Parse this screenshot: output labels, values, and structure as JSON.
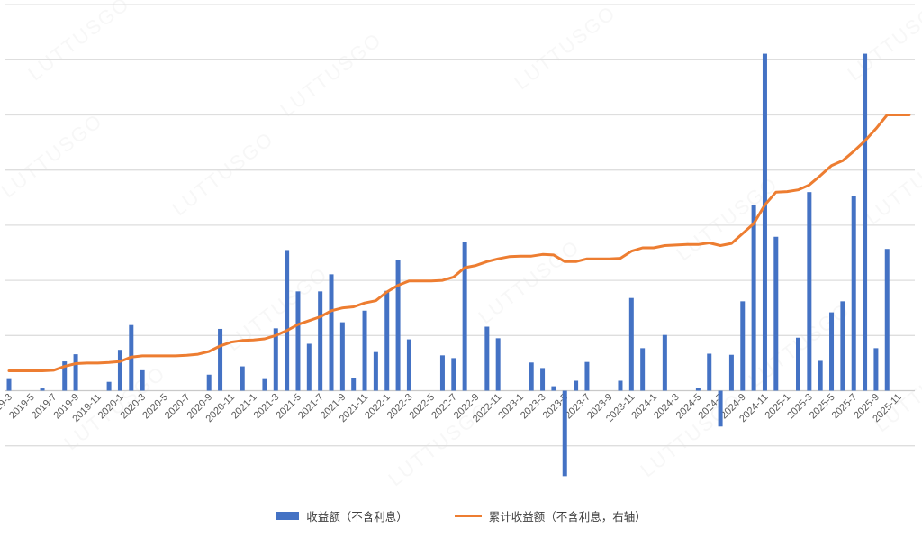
{
  "watermark": {
    "text": "LUTTUSGO"
  },
  "colors": {
    "bar": "#4472C4",
    "line": "#ED7D31",
    "gridline": "#DEDEDE",
    "axis_line": "#C9C9C9",
    "tick_label": "#595959",
    "legend_text": "#404040",
    "background": "#FFFFFF"
  },
  "legend": [
    {
      "label": "收益额（不含利息）",
      "type": "bar",
      "color": "#4472C4"
    },
    {
      "label": "累计收益额（不含利息，右轴）",
      "type": "line",
      "color": "#ED7D31"
    }
  ],
  "chart_data": {
    "type": "bar",
    "subtype": "bar+line combo, dual axis",
    "title": "",
    "xlabel": "",
    "ylabel": "",
    "y_axis_labels_visible": false,
    "value_unit": "gridline-intervals (axes unlabeled in screenshot; 1.0 = one horizontal gridline spacing)",
    "ylim_left_units": [
      -1,
      7
    ],
    "x_tick_step": 2,
    "grid": true,
    "legend_position": "bottom-center",
    "categories": [
      "2019-3",
      "2019-4",
      "2019-5",
      "2019-6",
      "2019-7",
      "2019-8",
      "2019-9",
      "2019-10",
      "2019-11",
      "2019-12",
      "2020-1",
      "2020-2",
      "2020-3",
      "2020-4",
      "2020-5",
      "2020-6",
      "2020-7",
      "2020-8",
      "2020-9",
      "2020-10",
      "2020-11",
      "2020-12",
      "2021-1",
      "2021-2",
      "2021-3",
      "2021-4",
      "2021-5",
      "2021-6",
      "2021-7",
      "2021-8",
      "2021-9",
      "2021-10",
      "2021-11",
      "2021-12",
      "2022-1",
      "2022-2",
      "2022-3",
      "2022-4",
      "2022-5",
      "2022-6",
      "2022-7",
      "2022-8",
      "2022-9",
      "2022-10",
      "2022-11",
      "2022-12",
      "2023-1",
      "2023-2",
      "2023-3",
      "2023-4",
      "2023-5",
      "2023-6",
      "2023-7",
      "2023-8",
      "2023-9",
      "2023-10",
      "2023-11",
      "2023-12",
      "2024-1",
      "2024-2",
      "2024-3",
      "2024-4",
      "2024-5",
      "2024-6",
      "2024-7",
      "2024-8",
      "2024-9",
      "2024-10",
      "2024-11",
      "2024-12",
      "2025-1",
      "2025-2",
      "2025-3",
      "2025-4",
      "2025-5",
      "2025-6",
      "2025-7",
      "2025-8",
      "2025-9",
      "2025-10",
      "2025-11",
      "2025-12"
    ],
    "series": [
      {
        "name": "收益额（不含利息）",
        "type": "bar",
        "axis": "left",
        "values": [
          0.21,
          0,
          0,
          0.04,
          0,
          0.53,
          0.66,
          0,
          0,
          0.16,
          0.74,
          1.19,
          0.37,
          0,
          0,
          0,
          0,
          0,
          0.29,
          1.12,
          0,
          0.44,
          0,
          0.21,
          1.13,
          2.55,
          1.8,
          0.85,
          1.8,
          2.11,
          1.24,
          0.23,
          1.45,
          0.7,
          1.81,
          2.37,
          0.93,
          0,
          0,
          0.64,
          0.59,
          2.7,
          0,
          1.16,
          0.95,
          0,
          0,
          0.51,
          0.41,
          0.08,
          -1.55,
          0.18,
          0.52,
          0,
          0,
          0.18,
          1.68,
          0.77,
          0,
          1.01,
          0,
          0,
          0.05,
          0.67,
          -0.65,
          0.65,
          1.62,
          3.37,
          6.11,
          2.79,
          0,
          0.96,
          3.6,
          0.54,
          1.42,
          1.62,
          3.53,
          6.11,
          0.77,
          2.57,
          0,
          0
        ]
      },
      {
        "name": "累计收益额（不含利息，右轴）",
        "type": "line",
        "axis": "right",
        "values": [
          0.36,
          0.36,
          0.36,
          0.36,
          0.37,
          0.44,
          0.49,
          0.5,
          0.5,
          0.51,
          0.53,
          0.61,
          0.63,
          0.63,
          0.63,
          0.63,
          0.64,
          0.66,
          0.71,
          0.81,
          0.88,
          0.91,
          0.92,
          0.94,
          1.0,
          1.09,
          1.2,
          1.27,
          1.34,
          1.45,
          1.5,
          1.52,
          1.59,
          1.63,
          1.79,
          1.91,
          1.99,
          1.99,
          1.99,
          2.0,
          2.06,
          2.23,
          2.27,
          2.34,
          2.39,
          2.43,
          2.44,
          2.44,
          2.47,
          2.46,
          2.34,
          2.34,
          2.39,
          2.39,
          2.39,
          2.4,
          2.53,
          2.59,
          2.59,
          2.63,
          2.64,
          2.65,
          2.65,
          2.68,
          2.63,
          2.67,
          2.85,
          3.03,
          3.37,
          3.6,
          3.61,
          3.64,
          3.73,
          3.9,
          4.08,
          4.17,
          4.34,
          4.53,
          4.75,
          5.0,
          5.0,
          5.0
        ]
      }
    ]
  }
}
